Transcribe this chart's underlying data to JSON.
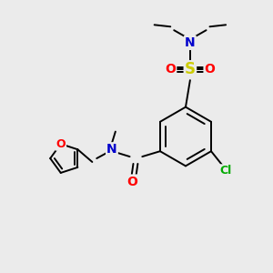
{
  "background_color": "#ebebeb",
  "figsize": [
    3.0,
    3.0
  ],
  "dpi": 100,
  "atom_colors": {
    "C": "#000000",
    "N": "#0000cc",
    "O": "#ff0000",
    "S": "#cccc00",
    "Cl": "#00aa00"
  },
  "bond_color": "#000000",
  "bond_width": 1.4,
  "font_size": 10
}
